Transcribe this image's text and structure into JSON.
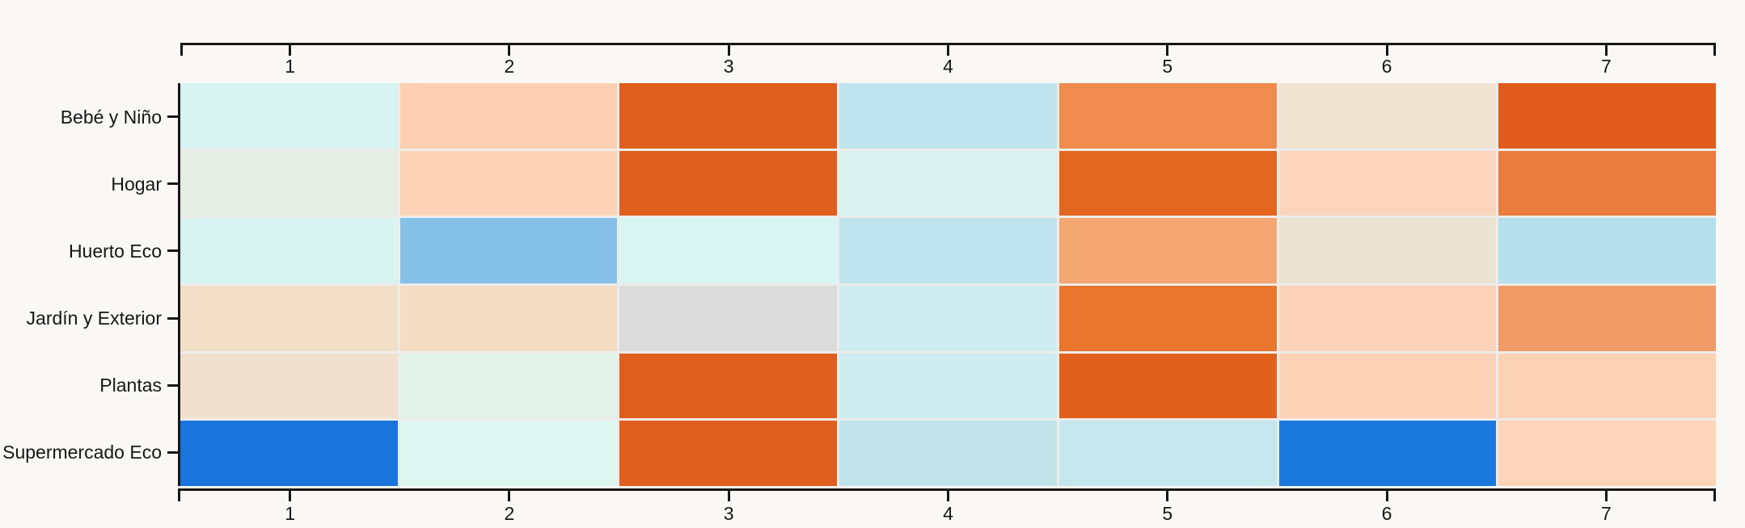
{
  "chart_data": {
    "type": "heatmap",
    "title": "",
    "xlabel": "",
    "ylabel": "",
    "grid": "off",
    "legend_position": "none",
    "x_axis": {
      "labels": [
        "1",
        "2",
        "3",
        "4",
        "5",
        "6",
        "7"
      ],
      "shown_on": "top and bottom"
    },
    "y_axis": {
      "labels": [
        "Bebé y Niño",
        "Hogar",
        "Huerto Eco",
        "Jardín y Exterior",
        "Plantas",
        "Supermercado Eco"
      ],
      "shown_on": "left"
    },
    "cell_colors": [
      [
        "#d8f3f1",
        "#fdd0b3",
        "#e05e1e",
        "#c0e4ee",
        "#f08c4e",
        "#f0e3d1",
        "#e05c1c"
      ],
      [
        "#e6eee4",
        "#fdd2b6",
        "#e05e1e",
        "#d9f2f0",
        "#e3661f",
        "#fad4bb",
        "#ea7c3e"
      ],
      [
        "#d7f4f2",
        "#85c0e7",
        "#d9f5f2",
        "#bfe4ee",
        "#f4a673",
        "#ece4d3",
        "#b5dfec"
      ],
      [
        "#f2dfc8",
        "#f4dcc2",
        "#dbdbdb",
        "#cfecf0",
        "#e9752e",
        "#fcd2b8",
        "#f09a66"
      ],
      [
        "#efe0cd",
        "#e2f2e8",
        "#e05e1e",
        "#cdedf0",
        "#e1611c",
        "#fcd2b7",
        "#fcd2b5"
      ],
      [
        "#1974dc",
        "#ddf6ef",
        "#e05e1e",
        "#c0e4ea",
        "#c4e6ed",
        "#1b78dd",
        "#fcd4ba"
      ]
    ]
  },
  "style": {
    "background_color": "#faf8f4",
    "axis_color": "#161616",
    "label_color": "#161616",
    "cell_gap_color": "#edecea",
    "strong_blue": "#1974dc",
    "strong_orange": "#e05e1e"
  }
}
